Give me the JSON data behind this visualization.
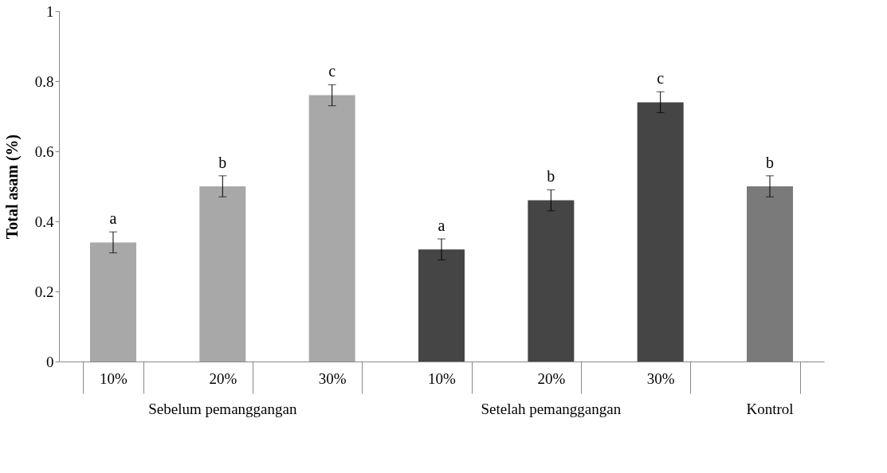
{
  "chart_data": {
    "type": "bar",
    "ylabel": "Total asam (%)",
    "categories": [
      "10%",
      "20%",
      "30%",
      "10%",
      "20%",
      "30%",
      null
    ],
    "values": [
      0.34,
      0.5,
      0.76,
      0.32,
      0.46,
      0.74,
      0.5
    ],
    "errors": [
      0.03,
      0.03,
      0.03,
      0.03,
      0.03,
      0.03,
      0.03
    ],
    "colors": [
      "#a8a8a8",
      "#a8a8a8",
      "#a8a8a8",
      "#454545",
      "#454545",
      "#454545",
      "#7a7a7a"
    ],
    "value_labels": [
      "a",
      "b",
      "c",
      "a",
      "b",
      "c",
      "b"
    ],
    "annotations": [
      "Sebelum pemanggangan",
      "Setelah pemanggangan",
      "Kontrol"
    ],
    "ylim": [
      0,
      1
    ],
    "yticks": [
      0,
      {
        "value": 0.2,
        "label": "0.2"
      },
      {
        "value": 0.4,
        "label": "0.4"
      },
      {
        "value": 0.6,
        "label": "0.6"
      },
      {
        "value": 0.8,
        "label": "0.8"
      },
      1
    ],
    "grid": false
  }
}
